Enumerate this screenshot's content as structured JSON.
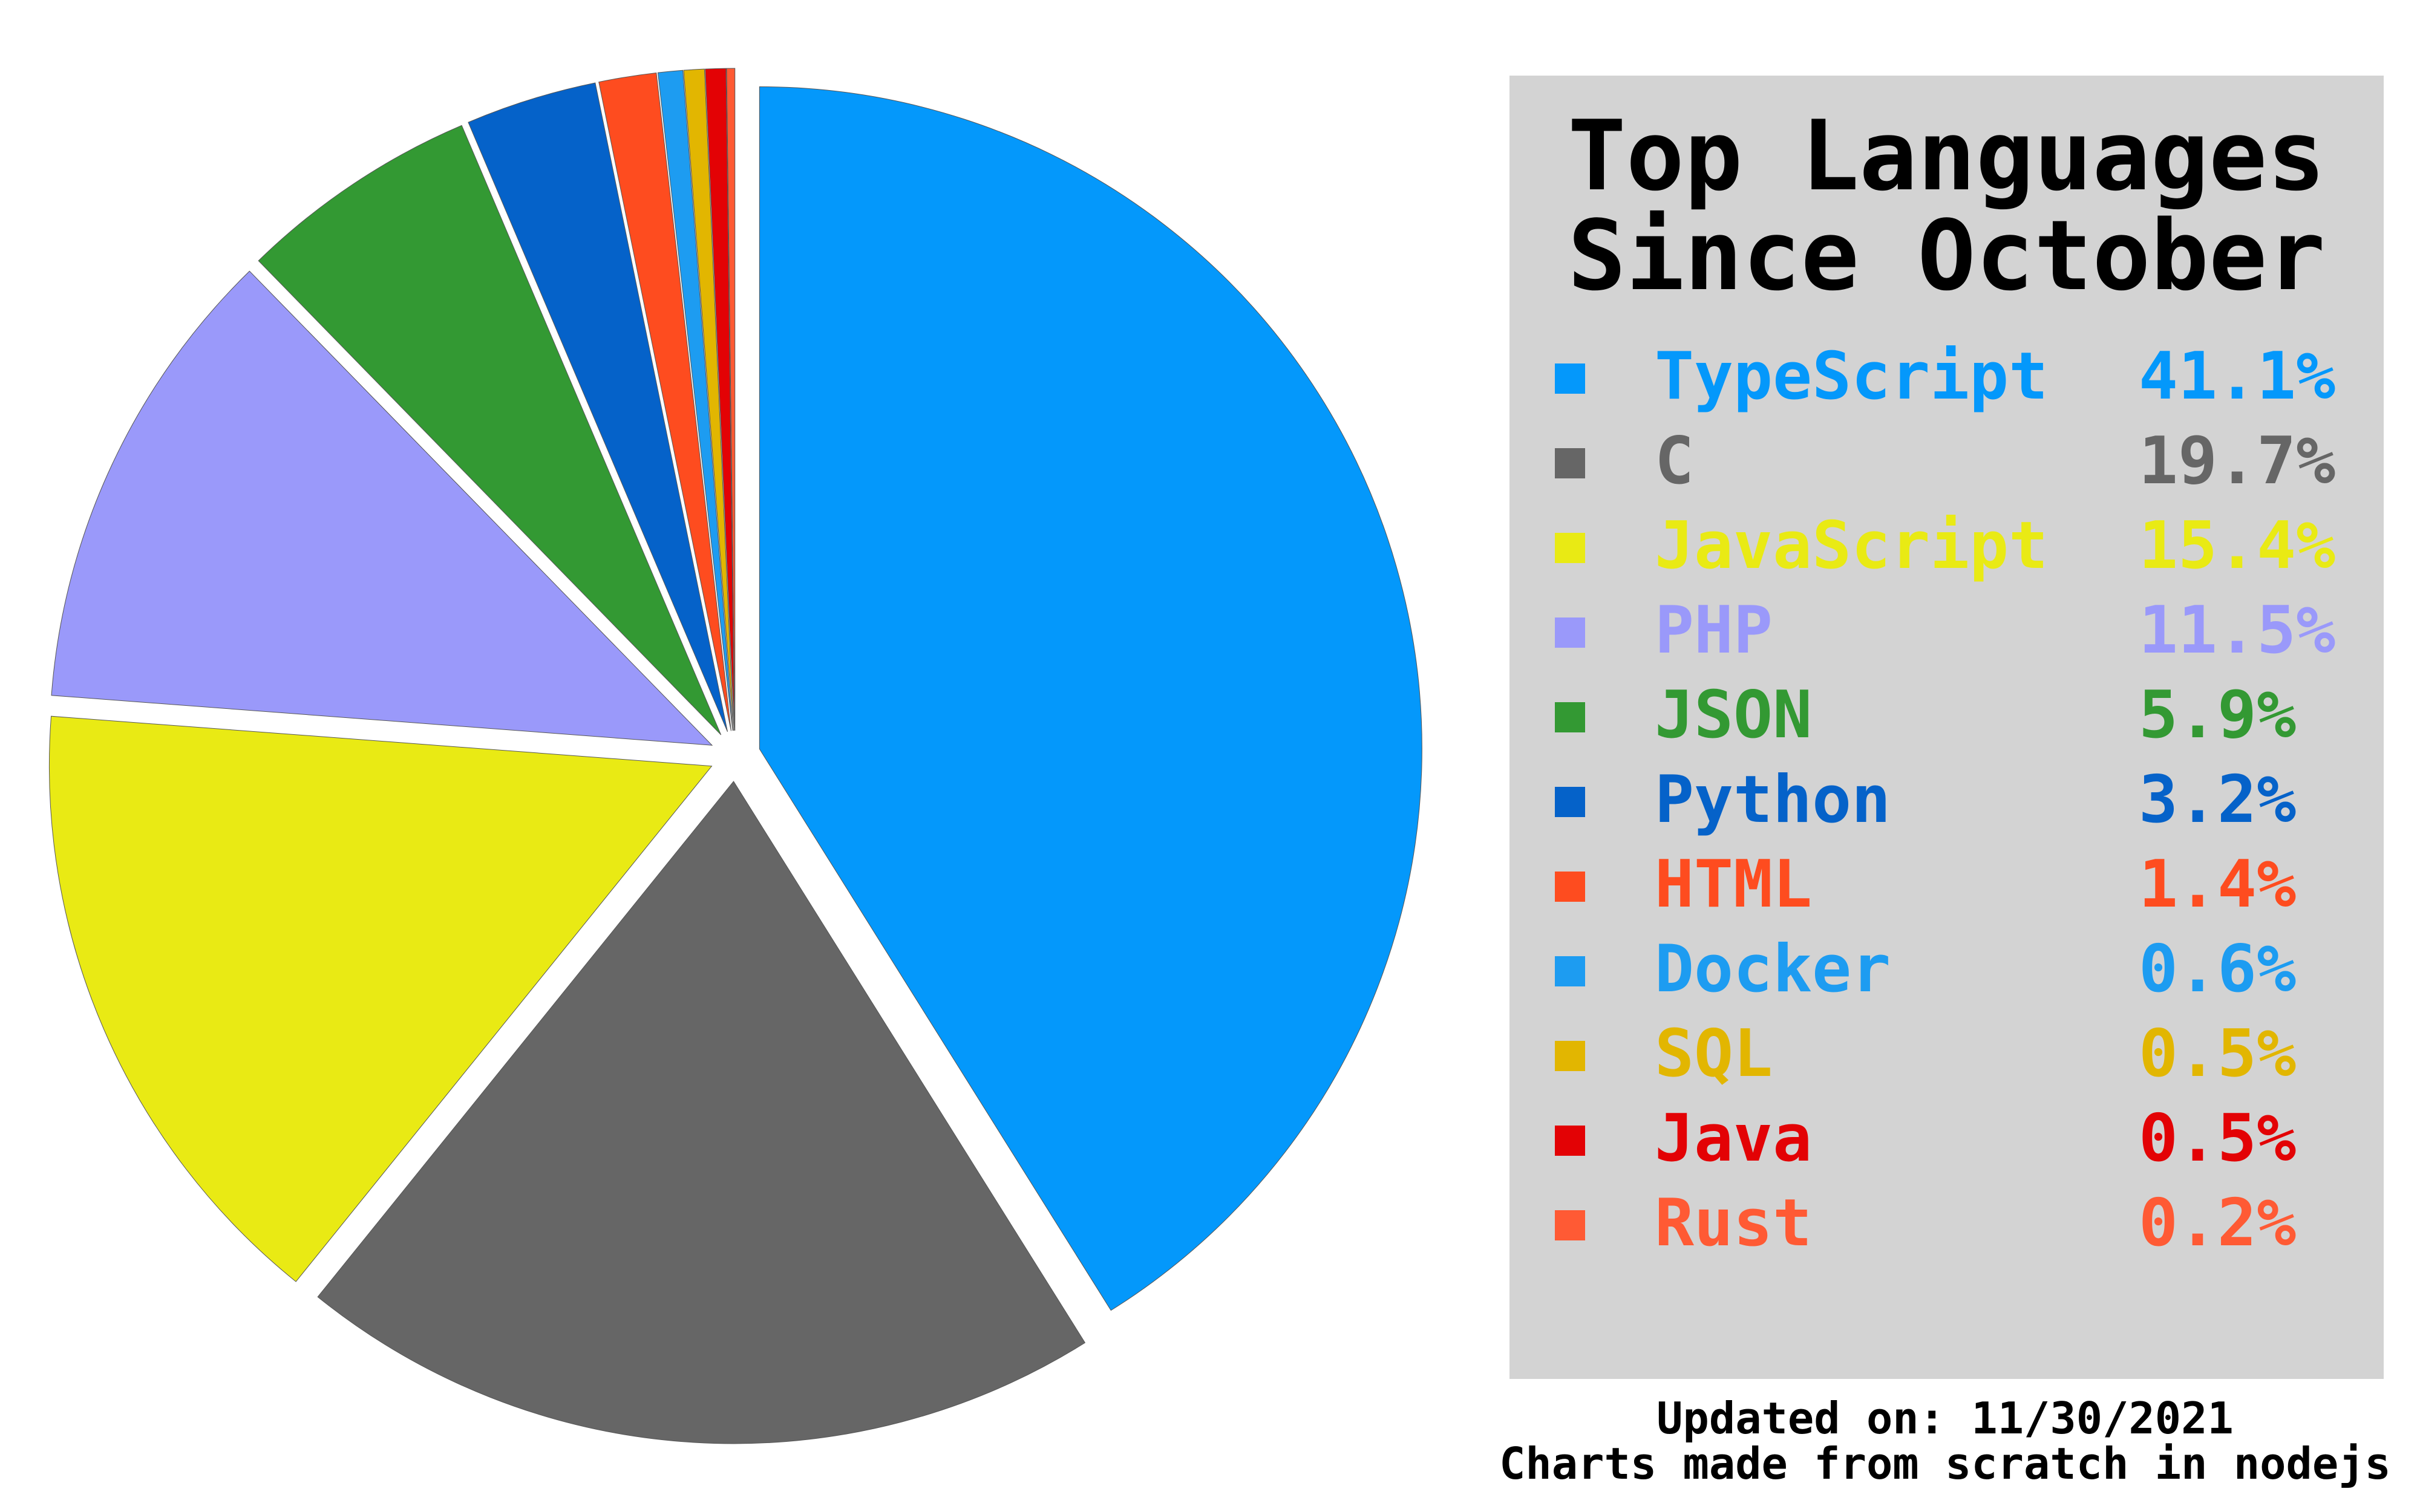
{
  "legend": {
    "title_line1": "Top Languages",
    "title_line2": "Since October"
  },
  "footer": {
    "updated": "Updated on: 11/30/2021",
    "credit": "Charts made from scratch in nodejs"
  },
  "chart_data": {
    "type": "pie",
    "title": "Top Languages Since October",
    "legend_position": "right",
    "slices": [
      {
        "label": "TypeScript",
        "value": 41.1,
        "display": "41.1%",
        "color": "#0498fb"
      },
      {
        "label": "C",
        "value": 19.7,
        "display": "19.7%",
        "color": "#666666"
      },
      {
        "label": "JavaScript",
        "value": 15.4,
        "display": "15.4%",
        "color": "#e9ea14"
      },
      {
        "label": "PHP",
        "value": 11.5,
        "display": "11.5%",
        "color": "#9a99fa"
      },
      {
        "label": "JSON",
        "value": 5.9,
        "display": "5.9%",
        "color": "#339933"
      },
      {
        "label": "Python",
        "value": 3.2,
        "display": "3.2%",
        "color": "#0562c9"
      },
      {
        "label": "HTML",
        "value": 1.4,
        "display": "1.4%",
        "color": "#fe4c1f"
      },
      {
        "label": "Docker",
        "value": 0.6,
        "display": "0.6%",
        "color": "#1d9cf1"
      },
      {
        "label": "SQL",
        "value": 0.5,
        "display": "0.5%",
        "color": "#e2b601"
      },
      {
        "label": "Java",
        "value": 0.5,
        "display": "0.5%",
        "color": "#e30205"
      },
      {
        "label": "Rust",
        "value": 0.2,
        "display": "0.2%",
        "color": "#ff5a34"
      }
    ]
  }
}
